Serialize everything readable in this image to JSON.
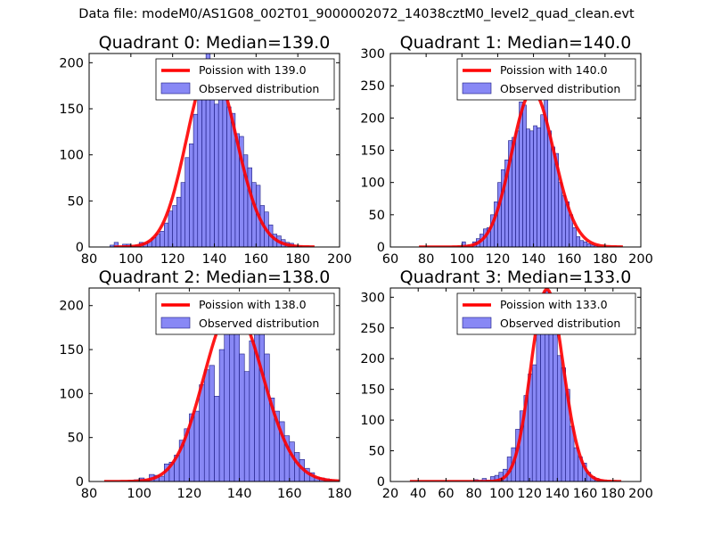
{
  "figure_title": "Data file: modeM0/AS1G08_002T01_9000002072_14038cztM0_level2_quad_clean.evt",
  "colors": {
    "hist_fill": "#7b7bf4",
    "hist_edge": "#1a1a80",
    "poisson_line": "#ff0000"
  },
  "chart_data": [
    {
      "type": "bar",
      "title": "Quadrant 0: Median=139.0",
      "legend": {
        "location": "top-right",
        "entries": [
          "Poission with 139.0",
          "Observed distribution"
        ]
      },
      "xlim": [
        80,
        200
      ],
      "ylim": [
        0,
        210
      ],
      "xticks": [
        80,
        100,
        120,
        140,
        160,
        180,
        200
      ],
      "yticks": [
        0,
        50,
        100,
        150,
        200
      ],
      "bin_width": 2,
      "bins": [
        [
          90,
          2
        ],
        [
          92,
          5
        ],
        [
          96,
          3
        ],
        [
          98,
          3
        ],
        [
          100,
          1
        ],
        [
          102,
          2
        ],
        [
          104,
          5
        ],
        [
          106,
          4
        ],
        [
          108,
          6
        ],
        [
          110,
          10
        ],
        [
          112,
          14
        ],
        [
          114,
          17
        ],
        [
          116,
          26
        ],
        [
          118,
          39
        ],
        [
          120,
          45
        ],
        [
          122,
          54
        ],
        [
          124,
          70
        ],
        [
          126,
          97
        ],
        [
          128,
          112
        ],
        [
          130,
          144
        ],
        [
          132,
          160
        ],
        [
          134,
          177
        ],
        [
          136,
          212
        ],
        [
          138,
          178
        ],
        [
          140,
          155
        ],
        [
          142,
          185
        ],
        [
          144,
          170
        ],
        [
          146,
          152
        ],
        [
          148,
          145
        ],
        [
          150,
          123
        ],
        [
          152,
          120
        ],
        [
          154,
          100
        ],
        [
          156,
          86
        ],
        [
          158,
          70
        ],
        [
          160,
          67
        ],
        [
          162,
          45
        ],
        [
          164,
          38
        ],
        [
          166,
          24
        ],
        [
          168,
          14
        ],
        [
          170,
          12
        ],
        [
          172,
          8
        ],
        [
          174,
          5
        ],
        [
          176,
          4
        ],
        [
          178,
          2
        ],
        [
          180,
          1
        ]
      ],
      "series": [
        {
          "name": "Poission with 139.0",
          "mean": 139.0,
          "x_range": [
            92,
            188
          ]
        }
      ]
    },
    {
      "type": "bar",
      "title": "Quadrant 1: Median=140.0",
      "legend": {
        "location": "top-right",
        "entries": [
          "Poission with 140.0",
          "Observed distribution"
        ]
      },
      "xlim": [
        60,
        200
      ],
      "ylim": [
        0,
        300
      ],
      "xticks": [
        60,
        80,
        100,
        120,
        140,
        160,
        180,
        200
      ],
      "yticks": [
        0,
        50,
        100,
        150,
        200,
        250,
        300
      ],
      "bin_width": 2,
      "bins": [
        [
          100,
          8
        ],
        [
          102,
          3
        ],
        [
          106,
          8
        ],
        [
          108,
          13
        ],
        [
          110,
          20
        ],
        [
          112,
          28
        ],
        [
          114,
          30
        ],
        [
          116,
          50
        ],
        [
          118,
          70
        ],
        [
          120,
          100
        ],
        [
          122,
          120
        ],
        [
          124,
          135
        ],
        [
          126,
          165
        ],
        [
          128,
          170
        ],
        [
          130,
          180
        ],
        [
          132,
          225
        ],
        [
          134,
          220
        ],
        [
          136,
          183
        ],
        [
          138,
          180
        ],
        [
          140,
          188
        ],
        [
          142,
          185
        ],
        [
          144,
          205
        ],
        [
          146,
          240
        ],
        [
          148,
          180
        ],
        [
          150,
          155
        ],
        [
          152,
          145
        ],
        [
          154,
          100
        ],
        [
          156,
          80
        ],
        [
          158,
          70
        ],
        [
          160,
          50
        ],
        [
          162,
          30
        ],
        [
          164,
          16
        ],
        [
          166,
          10
        ],
        [
          168,
          8
        ],
        [
          170,
          5
        ],
        [
          172,
          3
        ],
        [
          174,
          2
        ]
      ],
      "series": [
        {
          "name": "Poission with 140.0",
          "mean": 140.0,
          "x_range": [
            76,
            190
          ]
        }
      ]
    },
    {
      "type": "bar",
      "title": "Quadrant 2: Median=138.0",
      "legend": {
        "location": "top-right",
        "entries": [
          "Poission with 138.0",
          "Observed distribution"
        ]
      },
      "xlim": [
        80,
        180
      ],
      "ylim": [
        0,
        220
      ],
      "xticks": [
        80,
        100,
        120,
        140,
        160,
        180
      ],
      "yticks": [
        0,
        50,
        100,
        150,
        200
      ],
      "bin_width": 2,
      "bins": [
        [
          96,
          1
        ],
        [
          98,
          2
        ],
        [
          100,
          4
        ],
        [
          102,
          2
        ],
        [
          104,
          8
        ],
        [
          106,
          7
        ],
        [
          108,
          6
        ],
        [
          110,
          20
        ],
        [
          112,
          22
        ],
        [
          114,
          30
        ],
        [
          116,
          47
        ],
        [
          118,
          60
        ],
        [
          120,
          77
        ],
        [
          122,
          80
        ],
        [
          124,
          110
        ],
        [
          126,
          127
        ],
        [
          128,
          132
        ],
        [
          130,
          97
        ],
        [
          132,
          150
        ],
        [
          134,
          210
        ],
        [
          136,
          180
        ],
        [
          138,
          185
        ],
        [
          140,
          145
        ],
        [
          142,
          125
        ],
        [
          144,
          160
        ],
        [
          146,
          180
        ],
        [
          148,
          170
        ],
        [
          150,
          145
        ],
        [
          152,
          95
        ],
        [
          154,
          80
        ],
        [
          156,
          68
        ],
        [
          158,
          52
        ],
        [
          160,
          45
        ],
        [
          162,
          33
        ],
        [
          164,
          25
        ],
        [
          166,
          15
        ],
        [
          168,
          10
        ],
        [
          170,
          5
        ],
        [
          172,
          4
        ],
        [
          174,
          3
        ],
        [
          176,
          2
        ],
        [
          178,
          1
        ]
      ],
      "series": [
        {
          "name": "Poission with 138.0",
          "mean": 138.0,
          "x_range": [
            86,
            180
          ]
        }
      ]
    },
    {
      "type": "bar",
      "title": "Quadrant 3: Median=133.0",
      "legend": {
        "location": "top-right",
        "entries": [
          "Poission with 133.0",
          "Observed distribution"
        ]
      },
      "xlim": [
        20,
        200
      ],
      "ylim": [
        0,
        315
      ],
      "xticks": [
        20,
        40,
        60,
        80,
        100,
        120,
        140,
        160,
        180,
        200
      ],
      "yticks": [
        0,
        50,
        100,
        150,
        200,
        250,
        300
      ],
      "bin_width": 3,
      "bins": [
        [
          80,
          3
        ],
        [
          83,
          2
        ],
        [
          86,
          5
        ],
        [
          89,
          2
        ],
        [
          92,
          8
        ],
        [
          95,
          10
        ],
        [
          98,
          15
        ],
        [
          101,
          20
        ],
        [
          104,
          40
        ],
        [
          107,
          55
        ],
        [
          110,
          85
        ],
        [
          113,
          115
        ],
        [
          116,
          140
        ],
        [
          119,
          175
        ],
        [
          122,
          190
        ],
        [
          125,
          240
        ],
        [
          128,
          275
        ],
        [
          131,
          310
        ],
        [
          134,
          258
        ],
        [
          137,
          280
        ],
        [
          140,
          205
        ],
        [
          143,
          185
        ],
        [
          146,
          150
        ],
        [
          149,
          90
        ],
        [
          152,
          55
        ],
        [
          155,
          40
        ],
        [
          158,
          30
        ],
        [
          161,
          15
        ],
        [
          164,
          8
        ],
        [
          167,
          5
        ],
        [
          170,
          3
        ],
        [
          173,
          1
        ]
      ],
      "series": [
        {
          "name": "Poission with 133.0",
          "mean": 133.0,
          "x_range": [
            34,
            186
          ]
        }
      ]
    }
  ]
}
